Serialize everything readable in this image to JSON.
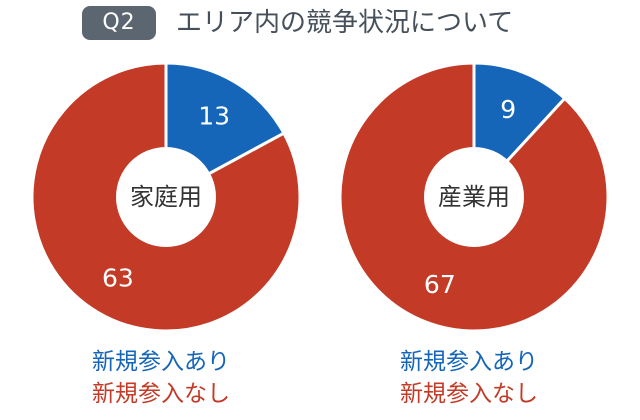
{
  "header": {
    "badge": "Q2",
    "title": "エリア内の競争状況について"
  },
  "colors": {
    "entry_yes": "#1565b8",
    "entry_no": "#c33a27",
    "badge_bg": "#5b6670",
    "title_text": "#45505a"
  },
  "chart_data": [
    {
      "type": "pie",
      "center_label": "家庭用",
      "categories": [
        "新規参入あり",
        "新規参入なし"
      ],
      "values": [
        13,
        63
      ],
      "colors": [
        "#1565b8",
        "#c33a27"
      ],
      "legend": [
        "新規参入あり",
        "新規参入なし"
      ]
    },
    {
      "type": "pie",
      "center_label": "産業用",
      "categories": [
        "新規参入あり",
        "新規参入なし"
      ],
      "values": [
        9,
        67
      ],
      "colors": [
        "#1565b8",
        "#c33a27"
      ],
      "legend": [
        "新規参入あり",
        "新規参入なし"
      ]
    }
  ]
}
